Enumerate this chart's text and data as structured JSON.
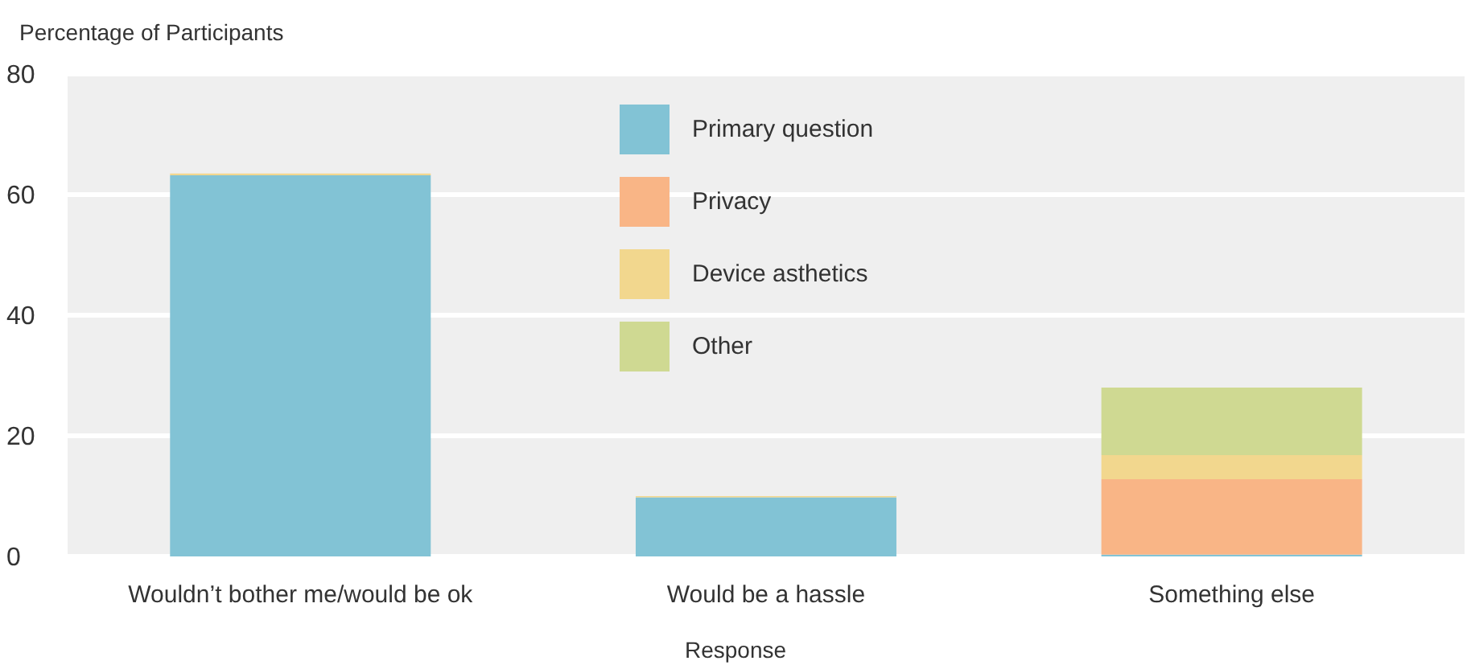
{
  "chart_data": {
    "type": "bar",
    "stacked": true,
    "xlabel": "Response",
    "ylabel": "Percentage of Participants",
    "categories": [
      "Wouldn’t bother me/would be ok",
      "Would be a hassle",
      "Something else"
    ],
    "series": [
      {
        "name": "Primary question",
        "color": "#82c3d5",
        "values": [
          63.2,
          9.8,
          0.3
        ]
      },
      {
        "name": "Privacy",
        "color": "#f9b586",
        "values": [
          0,
          0,
          12.5
        ]
      },
      {
        "name": "Device asthetics",
        "color": "#f2d78e",
        "values": [
          0.3,
          0.2,
          4
        ]
      },
      {
        "name": "Other",
        "color": "#cfd992",
        "values": [
          0,
          0,
          11.2
        ]
      }
    ],
    "ylim": [
      0,
      80
    ],
    "yticks": [
      0,
      20,
      40,
      60,
      80
    ],
    "grid": "y",
    "legend": "top"
  }
}
